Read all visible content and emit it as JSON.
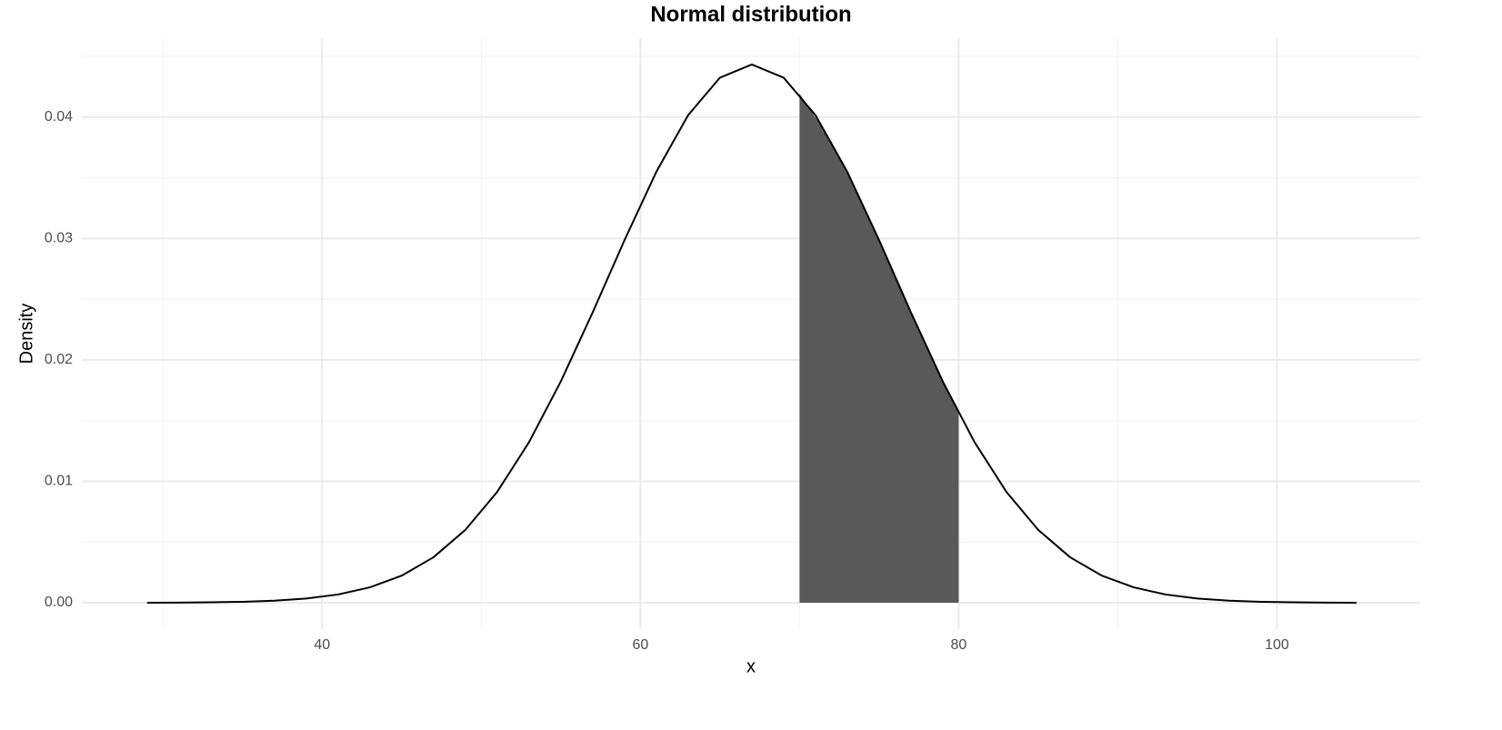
{
  "chart_data": {
    "type": "line",
    "title": "Normal distribution",
    "x_label": "x",
    "y_label": "Density",
    "x": [
      29,
      31,
      33,
      35,
      37,
      39,
      41,
      43,
      45,
      47,
      49,
      51,
      53,
      55,
      57,
      59,
      61,
      63,
      65,
      67,
      69,
      71,
      73,
      75,
      77,
      79,
      81,
      83,
      85,
      87,
      89,
      91,
      93,
      95,
      97,
      99,
      101,
      103,
      105
    ],
    "values": [
      0.0,
      1e-05,
      4e-05,
      8e-05,
      0.00017,
      0.00035,
      0.00068,
      0.00127,
      0.00223,
      0.00375,
      0.006,
      0.00913,
      0.01322,
      0.01823,
      0.02391,
      0.02986,
      0.03549,
      0.04016,
      0.04325,
      0.04433,
      0.04325,
      0.04016,
      0.03549,
      0.02986,
      0.02391,
      0.01823,
      0.01322,
      0.00913,
      0.006,
      0.00375,
      0.00223,
      0.00127,
      0.00068,
      0.00035,
      0.00017,
      8e-05,
      4e-05,
      1e-05,
      0.0
    ],
    "color": "#000000",
    "area": {
      "x": [
        70,
        72,
        74,
        76,
        78,
        80
      ],
      "values": [
        0.04194,
        0.03799,
        0.03276,
        0.02689,
        0.021,
        0.01562
      ],
      "color": "#595959"
    },
    "xlim": [
      24.9,
      109.0
    ],
    "ylim": [
      -0.00217,
      0.0465
    ],
    "xticks": [
      40,
      60,
      80,
      100
    ],
    "yticks": [
      {
        "value": 0,
        "label": "0.00"
      },
      0.01,
      0.02,
      0.03,
      0.04
    ],
    "xminor": [
      30,
      50,
      70,
      90
    ],
    "yminor": [
      0.005,
      0.015,
      0.025,
      0.035,
      0.045
    ],
    "grid": true
  }
}
